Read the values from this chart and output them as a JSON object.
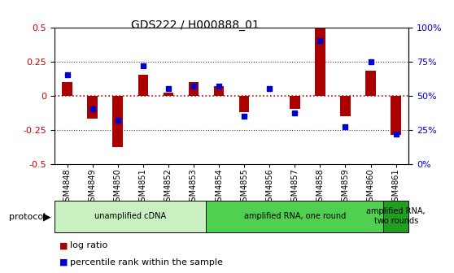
{
  "title": "GDS222 / H000888_01",
  "samples": [
    "GSM4848",
    "GSM4849",
    "GSM4850",
    "GSM4851",
    "GSM4852",
    "GSM4853",
    "GSM4854",
    "GSM4855",
    "GSM4856",
    "GSM4857",
    "GSM4858",
    "GSM4859",
    "GSM4860",
    "GSM4861"
  ],
  "log_ratio": [
    0.1,
    -0.17,
    -0.38,
    0.15,
    0.02,
    0.1,
    0.07,
    -0.12,
    0.0,
    -0.1,
    0.49,
    -0.15,
    0.18,
    -0.29
  ],
  "percentile": [
    65,
    40,
    32,
    72,
    55,
    57,
    57,
    35,
    55,
    37,
    90,
    27,
    75,
    22
  ],
  "proto_colors": [
    "#c8f0c0",
    "#50d050",
    "#20a020"
  ],
  "proto_labels": [
    "unamplified cDNA",
    "amplified RNA, one round",
    "amplified RNA,\ntwo rounds"
  ],
  "proto_ranges": [
    [
      0,
      5
    ],
    [
      6,
      12
    ],
    [
      13,
      13
    ]
  ],
  "ylim_left": [
    -0.5,
    0.5
  ],
  "bar_color_red": "#aa0000",
  "bar_color_blue": "#0000cc",
  "hline0_color": "#cc0000",
  "hline_color": "#444444",
  "bg_color": "#ffffff",
  "yticks_left": [
    -0.5,
    -0.25,
    0,
    0.25,
    0.5
  ],
  "ytick_labels_left": [
    "-0.5",
    "-0.25",
    "0",
    "0.25",
    "0.5"
  ],
  "yticks_right": [
    0,
    25,
    50,
    75,
    100
  ],
  "ytick_labels_right": [
    "0%",
    "25%",
    "50%",
    "75%",
    "100%"
  ]
}
